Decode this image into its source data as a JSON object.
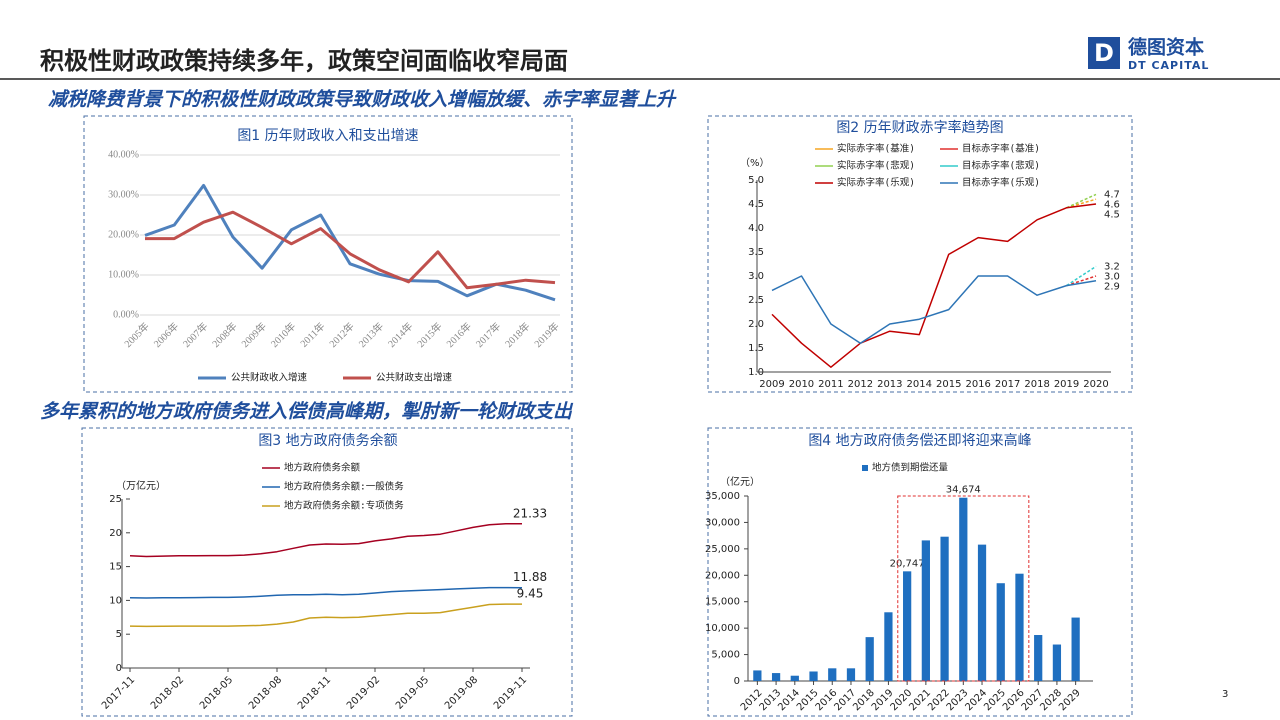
{
  "header": {
    "title": "积极性财政政策持续多年，政策空间面临收窄局面",
    "logo_cn": "德图资本",
    "logo_en": "DT CAPITAL",
    "logo_mark": "D",
    "subtitle_1": "减税降费背景下的积极性财政政策导致财政收入增幅放缓、赤字率显著上升",
    "subtitle_2": "多年累积的地方政府债务进入偿债高峰期，掣肘新一轮财政支出",
    "page_number": "3"
  },
  "chart_data": [
    {
      "type": "line",
      "title": "图1 历年财政收入和支出增速",
      "categories": [
        "2005年",
        "2006年",
        "2007年",
        "2008年",
        "2009年",
        "2010年",
        "2011年",
        "2012年",
        "2013年",
        "2014年",
        "2015年",
        "2016年",
        "2017年",
        "2018年",
        "2019年"
      ],
      "series": [
        {
          "name": "公共财政收入增速",
          "color": "#4f81bd",
          "values": [
            19.9,
            22.5,
            32.4,
            19.5,
            11.7,
            21.3,
            25.0,
            12.8,
            10.2,
            8.6,
            8.4,
            4.8,
            7.7,
            6.2,
            3.8
          ]
        },
        {
          "name": "公共财政支出增速",
          "color": "#c0504d",
          "values": [
            19.1,
            19.1,
            23.2,
            25.7,
            21.9,
            17.8,
            21.6,
            15.3,
            11.3,
            8.3,
            15.8,
            6.8,
            7.7,
            8.7,
            8.1
          ]
        }
      ],
      "ylim": [
        0,
        40
      ],
      "yticks": [
        {
          "value": 0,
          "label": "0.00%"
        },
        {
          "value": 10,
          "label": "10.00%"
        },
        {
          "value": 20,
          "label": "20.00%"
        },
        {
          "value": 30,
          "label": "30.00%"
        },
        {
          "value": 40,
          "label": "40.00%"
        }
      ],
      "grid": true
    },
    {
      "type": "line",
      "title": "图2 历年财政赤字率趋势图",
      "y_label": "（%）",
      "categories": [
        "2009",
        "2010",
        "2011",
        "2012",
        "2013",
        "2014",
        "2015",
        "2016",
        "2017",
        "2018",
        "2019",
        "2020"
      ],
      "series": [
        {
          "name": "实际赤字率(基准)",
          "color": "#f5a623",
          "dashed": true,
          "values": [
            null,
            null,
            null,
            null,
            null,
            null,
            null,
            null,
            null,
            null,
            4.42,
            4.6
          ]
        },
        {
          "name": "目标赤字率(基准)",
          "color": "#e0302f",
          "dashed": true,
          "values": [
            null,
            null,
            null,
            null,
            null,
            null,
            null,
            null,
            null,
            null,
            2.8,
            3.0
          ],
          "value_labels": [
            null,
            null,
            null,
            null,
            null,
            null,
            null,
            null,
            null,
            null,
            null,
            "3.0"
          ]
        },
        {
          "name": "实际赤字率(悲观)",
          "color": "#92d050",
          "dashed": true,
          "values": [
            null,
            null,
            null,
            null,
            null,
            null,
            null,
            null,
            null,
            null,
            4.42,
            4.7
          ]
        },
        {
          "name": "目标赤字率(悲观)",
          "color": "#33cccc",
          "dashed": true,
          "values": [
            null,
            null,
            null,
            null,
            null,
            null,
            null,
            null,
            null,
            null,
            2.8,
            3.2
          ]
        },
        {
          "name": "实际赤字率(乐观)",
          "color": "#c00000",
          "values": [
            2.2,
            1.6,
            1.1,
            1.6,
            1.85,
            1.78,
            3.45,
            3.8,
            3.72,
            4.17,
            4.42,
            4.5
          ]
        },
        {
          "name": "目标赤字率(乐观)",
          "color": "#2e75b6",
          "values": [
            2.7,
            3.0,
            2.0,
            1.6,
            2.0,
            2.1,
            2.3,
            3.0,
            3.0,
            2.6,
            2.8,
            2.9
          ]
        }
      ],
      "ylim": [
        1.0,
        5.0
      ],
      "yticks": [
        {
          "value": 1,
          "label": "1.0"
        },
        1.5,
        {
          "value": 2,
          "label": "2.0"
        },
        2.5,
        {
          "value": 3,
          "label": "3.0"
        },
        3.5,
        {
          "value": 4,
          "label": "4.0"
        },
        4.5,
        {
          "value": 5,
          "label": "5.0"
        }
      ]
    },
    {
      "type": "line",
      "title": "图3 地方政府债务余额",
      "y_label": "（万亿元）",
      "categories": [
        "2017-11",
        null,
        null,
        "2018-02",
        null,
        null,
        "2018-05",
        null,
        null,
        "2018-08",
        null,
        null,
        "2018-11",
        null,
        null,
        "2019-02",
        null,
        null,
        "2019-05",
        null,
        null,
        "2019-08",
        null,
        null,
        "2019-11"
      ],
      "series": [
        {
          "name": "地方政府债务余额",
          "color": "#a50021",
          "values": [
            16.6,
            16.5,
            16.55,
            16.6,
            16.6,
            16.62,
            16.62,
            16.7,
            16.9,
            17.2,
            17.7,
            18.2,
            18.35,
            18.3,
            18.4,
            18.8,
            19.1,
            19.5,
            19.6,
            19.8,
            20.3,
            20.8,
            21.2,
            21.35,
            21.33
          ]
        },
        {
          "name": "地方政府债务余额:一般债务",
          "color": "#2066b0",
          "values": [
            10.4,
            10.35,
            10.38,
            10.4,
            10.42,
            10.45,
            10.45,
            10.5,
            10.6,
            10.75,
            10.85,
            10.85,
            10.9,
            10.85,
            10.9,
            11.1,
            11.3,
            11.4,
            11.5,
            11.6,
            11.7,
            11.8,
            11.9,
            11.9,
            11.88
          ]
        },
        {
          "name": "地方政府债务余额:专项债务",
          "color": "#c9a01e",
          "values": [
            6.2,
            6.15,
            6.17,
            6.2,
            6.2,
            6.2,
            6.2,
            6.25,
            6.3,
            6.5,
            6.8,
            7.4,
            7.5,
            7.45,
            7.5,
            7.7,
            7.9,
            8.1,
            8.1,
            8.2,
            8.6,
            9.0,
            9.4,
            9.45,
            9.45
          ]
        }
      ],
      "ylim": [
        0,
        25
      ],
      "yticks": [
        0,
        5,
        10,
        15,
        20,
        25
      ]
    },
    {
      "type": "bar",
      "title": "图4 地方政府债务偿还即将迎来高峰",
      "y_label": "（亿元）",
      "categories": [
        "2012",
        "2013",
        "2014",
        "2015",
        "2016",
        "2017",
        "2018",
        "2019",
        "2020",
        "2021",
        "2022",
        "2023",
        "2024",
        "2025",
        "2026",
        "2027",
        "2028",
        "2029"
      ],
      "series": [
        {
          "name": "地方债到期偿还量",
          "color": "#1f6fc0",
          "values": [
            2000,
            1500,
            1000,
            1800,
            2400,
            2400,
            8300,
            13000,
            20747,
            26600,
            27300,
            34674,
            25800,
            18500,
            20300,
            8700,
            6900,
            12000
          ],
          "value_labels": [
            null,
            null,
            null,
            null,
            null,
            null,
            null,
            null,
            "20,747",
            null,
            null,
            "34,674",
            null,
            null,
            null,
            null,
            null,
            null
          ]
        }
      ],
      "ylim": [
        0,
        35000
      ],
      "yticks": [
        0,
        {
          "value": 5000,
          "label": "5,000"
        },
        {
          "value": 10000,
          "label": "10,000"
        },
        {
          "value": 15000,
          "label": "15,000"
        },
        {
          "value": 20000,
          "label": "20,000"
        },
        {
          "value": 25000,
          "label": "25,000"
        },
        {
          "value": 30000,
          "label": "30,000"
        },
        {
          "value": 35000,
          "label": "35,000"
        }
      ]
    }
  ]
}
